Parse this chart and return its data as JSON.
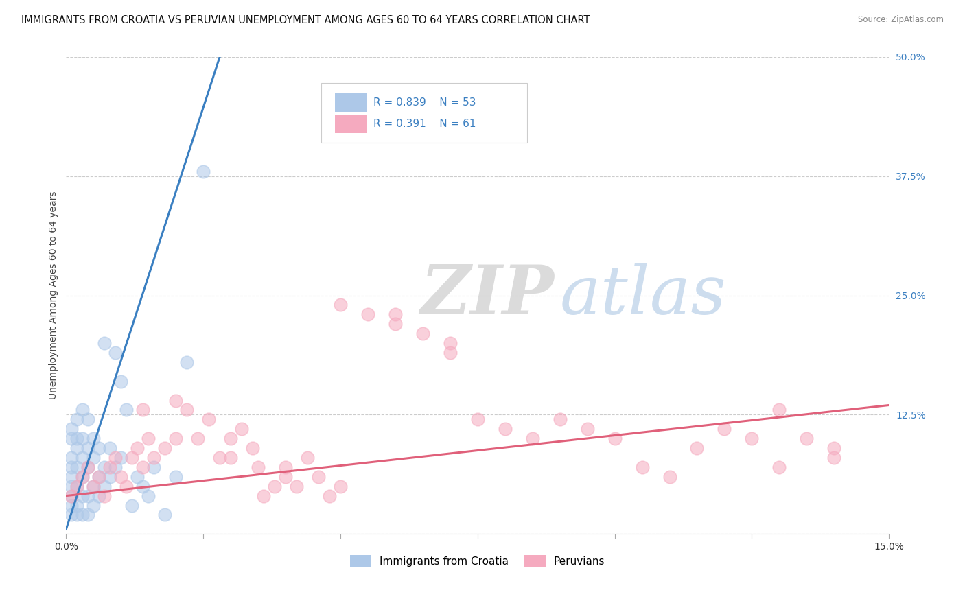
{
  "title": "IMMIGRANTS FROM CROATIA VS PERUVIAN UNEMPLOYMENT AMONG AGES 60 TO 64 YEARS CORRELATION CHART",
  "source": "Source: ZipAtlas.com",
  "ylabel": "Unemployment Among Ages 60 to 64 years",
  "xlim": [
    0.0,
    0.15
  ],
  "ylim": [
    0.0,
    0.5
  ],
  "yticks": [
    0.0,
    0.125,
    0.25,
    0.375,
    0.5
  ],
  "ytick_labels": [
    "",
    "12.5%",
    "25.0%",
    "37.5%",
    "50.0%"
  ],
  "xticks": [
    0.0,
    0.025,
    0.05,
    0.075,
    0.1,
    0.125,
    0.15
  ],
  "watermark_zip": "ZIP",
  "watermark_atlas": "atlas",
  "legend_r1": "0.839",
  "legend_n1": "53",
  "legend_r2": "0.391",
  "legend_n2": "61",
  "croatia_color": "#adc8e8",
  "peru_color": "#f5aabf",
  "croatia_line_color": "#3a7fc1",
  "peru_line_color": "#e0607a",
  "croatia_x": [
    0.001,
    0.001,
    0.001,
    0.001,
    0.001,
    0.001,
    0.001,
    0.001,
    0.001,
    0.002,
    0.002,
    0.002,
    0.002,
    0.002,
    0.002,
    0.002,
    0.003,
    0.003,
    0.003,
    0.003,
    0.003,
    0.003,
    0.004,
    0.004,
    0.004,
    0.004,
    0.004,
    0.005,
    0.005,
    0.005,
    0.005,
    0.006,
    0.006,
    0.006,
    0.007,
    0.007,
    0.007,
    0.008,
    0.008,
    0.009,
    0.009,
    0.01,
    0.01,
    0.011,
    0.012,
    0.013,
    0.014,
    0.015,
    0.016,
    0.018,
    0.02,
    0.022,
    0.025
  ],
  "croatia_y": [
    0.02,
    0.03,
    0.04,
    0.05,
    0.06,
    0.07,
    0.08,
    0.1,
    0.11,
    0.02,
    0.03,
    0.05,
    0.07,
    0.09,
    0.1,
    0.12,
    0.02,
    0.04,
    0.06,
    0.08,
    0.1,
    0.13,
    0.02,
    0.04,
    0.07,
    0.09,
    0.12,
    0.03,
    0.05,
    0.08,
    0.1,
    0.04,
    0.06,
    0.09,
    0.05,
    0.07,
    0.2,
    0.06,
    0.09,
    0.07,
    0.19,
    0.08,
    0.16,
    0.13,
    0.03,
    0.06,
    0.05,
    0.04,
    0.07,
    0.02,
    0.06,
    0.18,
    0.38
  ],
  "croatia_line_x": [
    0.0,
    0.028
  ],
  "croatia_line_y": [
    0.005,
    0.5
  ],
  "peru_x": [
    0.001,
    0.002,
    0.003,
    0.004,
    0.005,
    0.006,
    0.007,
    0.008,
    0.009,
    0.01,
    0.011,
    0.012,
    0.013,
    0.014,
    0.015,
    0.016,
    0.018,
    0.02,
    0.022,
    0.024,
    0.026,
    0.028,
    0.03,
    0.032,
    0.034,
    0.036,
    0.038,
    0.04,
    0.042,
    0.044,
    0.046,
    0.048,
    0.05,
    0.055,
    0.06,
    0.065,
    0.07,
    0.075,
    0.08,
    0.085,
    0.09,
    0.095,
    0.1,
    0.105,
    0.11,
    0.115,
    0.12,
    0.125,
    0.13,
    0.135,
    0.14,
    0.014,
    0.02,
    0.03,
    0.035,
    0.04,
    0.05,
    0.06,
    0.07,
    0.13,
    0.14
  ],
  "peru_y": [
    0.04,
    0.05,
    0.06,
    0.07,
    0.05,
    0.06,
    0.04,
    0.07,
    0.08,
    0.06,
    0.05,
    0.08,
    0.09,
    0.07,
    0.1,
    0.08,
    0.09,
    0.1,
    0.13,
    0.1,
    0.12,
    0.08,
    0.1,
    0.11,
    0.09,
    0.04,
    0.05,
    0.07,
    0.05,
    0.08,
    0.06,
    0.04,
    0.05,
    0.23,
    0.22,
    0.21,
    0.2,
    0.12,
    0.11,
    0.1,
    0.12,
    0.11,
    0.1,
    0.07,
    0.06,
    0.09,
    0.11,
    0.1,
    0.07,
    0.1,
    0.09,
    0.13,
    0.14,
    0.08,
    0.07,
    0.06,
    0.24,
    0.23,
    0.19,
    0.13,
    0.08
  ],
  "peru_line_x": [
    0.0,
    0.15
  ],
  "peru_line_y": [
    0.04,
    0.135
  ]
}
